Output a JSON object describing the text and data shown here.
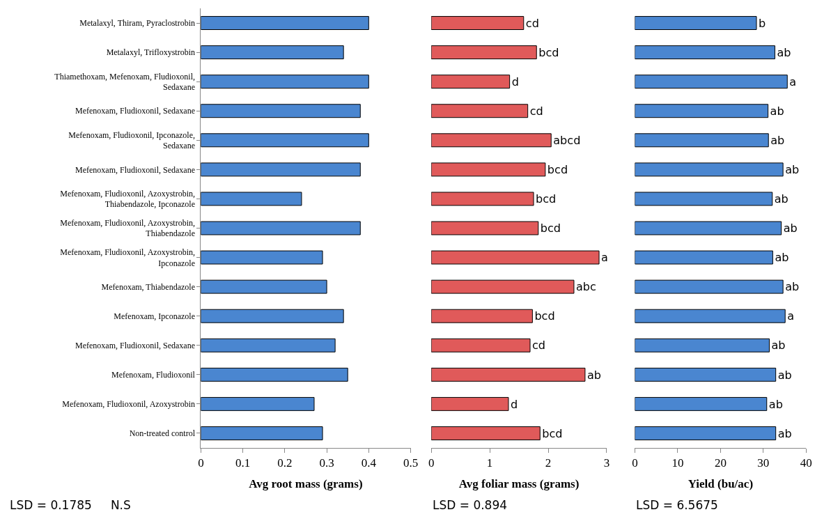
{
  "chart_data": [
    {
      "type": "bar",
      "orientation": "horizontal",
      "xlabel": "Avg root mass (grams)",
      "categories": [
        "Metalaxyl, Thiram, Pyraclostrobin",
        "Metalaxyl, Trifloxystrobin",
        "Thiamethoxam, Mefenoxam, Fludioxonil, Sedaxane",
        "Mefenoxam, Fludioxonil, Sedaxane",
        "Mefenoxam, Fludioxonil, Ipconazole, Sedaxane",
        "Mefenoxam, Fludioxonil, Sedaxane",
        "Mefenoxam, Fludioxonil, Azoxystrobin, Thiabendazole, Ipconazole",
        "Mefenoxam, Fludioxonil, Azoxystrobin, Thiabendazole",
        "Mefenoxam, Fludioxonil, Azoxystrobin, Ipconazole",
        "Mefenoxam, Thiabendazole",
        "Mefenoxam, Ipconazole",
        "Mefenoxam, Fludioxonil, Sedaxane",
        "Mefenoxam, Fludioxonil",
        "Mefenoxam, Fludioxonil, Azoxystrobin",
        "Non-treated control"
      ],
      "values": [
        0.4,
        0.34,
        0.4,
        0.38,
        0.4,
        0.38,
        0.24,
        0.38,
        0.29,
        0.3,
        0.34,
        0.32,
        0.35,
        0.27,
        0.29
      ],
      "color": "#4a86d0",
      "xlim": [
        0,
        0.5
      ],
      "xticks": [
        0,
        0.1,
        0.2,
        0.3,
        0.4,
        0.5
      ],
      "annotations": [
        "LSD = 0.1785     N.S"
      ]
    },
    {
      "type": "bar",
      "orientation": "horizontal",
      "xlabel": "Avg foliar mass (grams)",
      "categories": [
        null,
        null,
        null,
        null,
        null,
        null,
        null,
        null,
        null,
        null,
        null,
        null,
        null,
        null,
        null
      ],
      "values": [
        1.58,
        1.8,
        1.34,
        1.65,
        2.05,
        1.95,
        1.75,
        1.83,
        2.87,
        2.44,
        1.73,
        1.69,
        2.63,
        1.32,
        1.86
      ],
      "value_labels": [
        "cd",
        "bcd",
        "d",
        "cd",
        "abcd",
        "bcd",
        "bcd",
        "bcd",
        "a",
        "abc",
        "bcd",
        "cd",
        "ab",
        "d",
        "bcd"
      ],
      "color": "#e05a5a",
      "xlim": [
        0,
        3
      ],
      "xticks": [
        0,
        1,
        2,
        3
      ],
      "tick_labels": "x",
      "annotations": [
        "LSD = 0.894"
      ]
    },
    {
      "type": "bar",
      "orientation": "horizontal",
      "xlabel": "Yield (bu/ac)",
      "categories": [
        null,
        null,
        null,
        null,
        null,
        null,
        null,
        null,
        null,
        null,
        null,
        null,
        null,
        null,
        null
      ],
      "values": [
        28.4,
        32.7,
        35.6,
        31.1,
        31.2,
        34.6,
        32.1,
        34.2,
        32.2,
        34.6,
        35.1,
        31.4,
        32.9,
        30.8,
        32.9
      ],
      "value_labels": [
        "b",
        "ab",
        "a",
        "ab",
        "ab",
        "ab",
        "ab",
        "ab",
        "ab",
        "ab",
        "a",
        "ab",
        "ab",
        "ab",
        "ab"
      ],
      "color": "#4a86d0",
      "xlim": [
        0,
        40
      ],
      "xticks": [
        0,
        10,
        20,
        30,
        40
      ],
      "tick_labels": "x",
      "annotations": [
        "LSD = 6.5675"
      ]
    }
  ]
}
